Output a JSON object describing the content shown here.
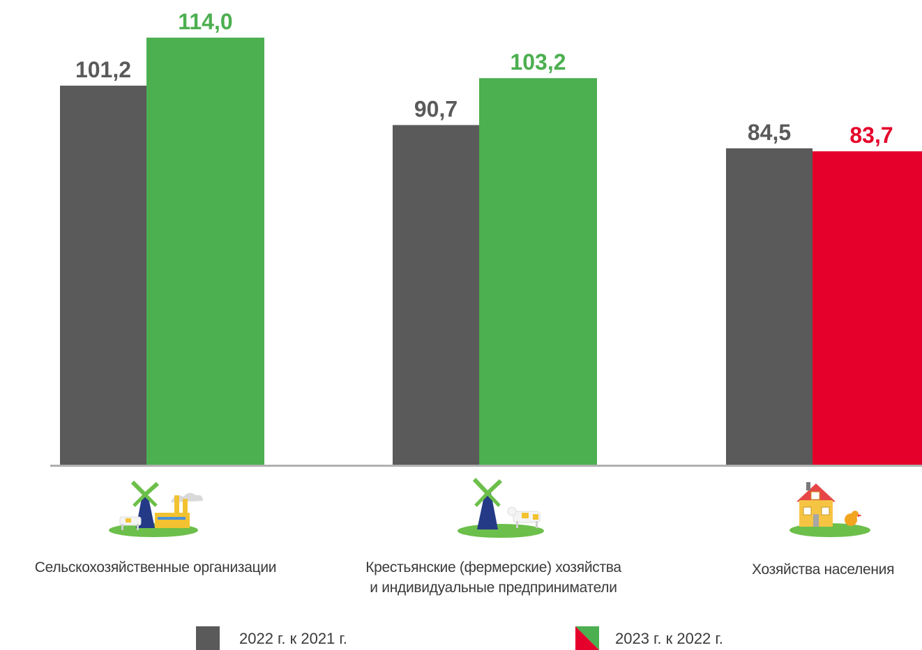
{
  "chart_data": {
    "type": "bar",
    "title": "",
    "xlabel": "",
    "ylabel": "",
    "ylim": [
      0,
      116
    ],
    "grid": false,
    "legend_position": "bottom",
    "categories": [
      "Сельскохозяйственные организации",
      "Крестьянские (фермерские) хозяйства и индивидуальные предприниматели",
      "Хозяйства населения"
    ],
    "category_lines": [
      [
        "Сельскохозяйственные организации"
      ],
      [
        "Крестьянские (фермерские) хозяйства",
        "и индивидуальные предприниматели"
      ],
      [
        "Хозяйства населения"
      ]
    ],
    "category_icons": [
      "windmill-factory-icon",
      "windmill-cow-icon",
      "house-chicken-icon"
    ],
    "series": [
      {
        "name": "2022 г. к 2021 г.",
        "values": [
          101.2,
          90.7,
          84.5
        ],
        "labels": [
          "101,2",
          "90,7",
          "84,5"
        ],
        "colors": [
          "#5a5a5a",
          "#5a5a5a",
          "#5a5a5a"
        ],
        "label_colors": [
          "#5a5a5a",
          "#5a5a5a",
          "#5a5a5a"
        ]
      },
      {
        "name": "2023 г. к 2022 г.",
        "values": [
          114.0,
          103.2,
          83.7
        ],
        "labels": [
          "114,0",
          "103,2",
          "83,7"
        ],
        "colors": [
          "#4caf50",
          "#4caf50",
          "#e4002b"
        ],
        "label_colors": [
          "#4caf50",
          "#4caf50",
          "#e4002b"
        ]
      }
    ],
    "colors": {
      "gray": "#5a5a5a",
      "green": "#4caf50",
      "red": "#e4002b",
      "axis": "#b0b0b0"
    }
  }
}
